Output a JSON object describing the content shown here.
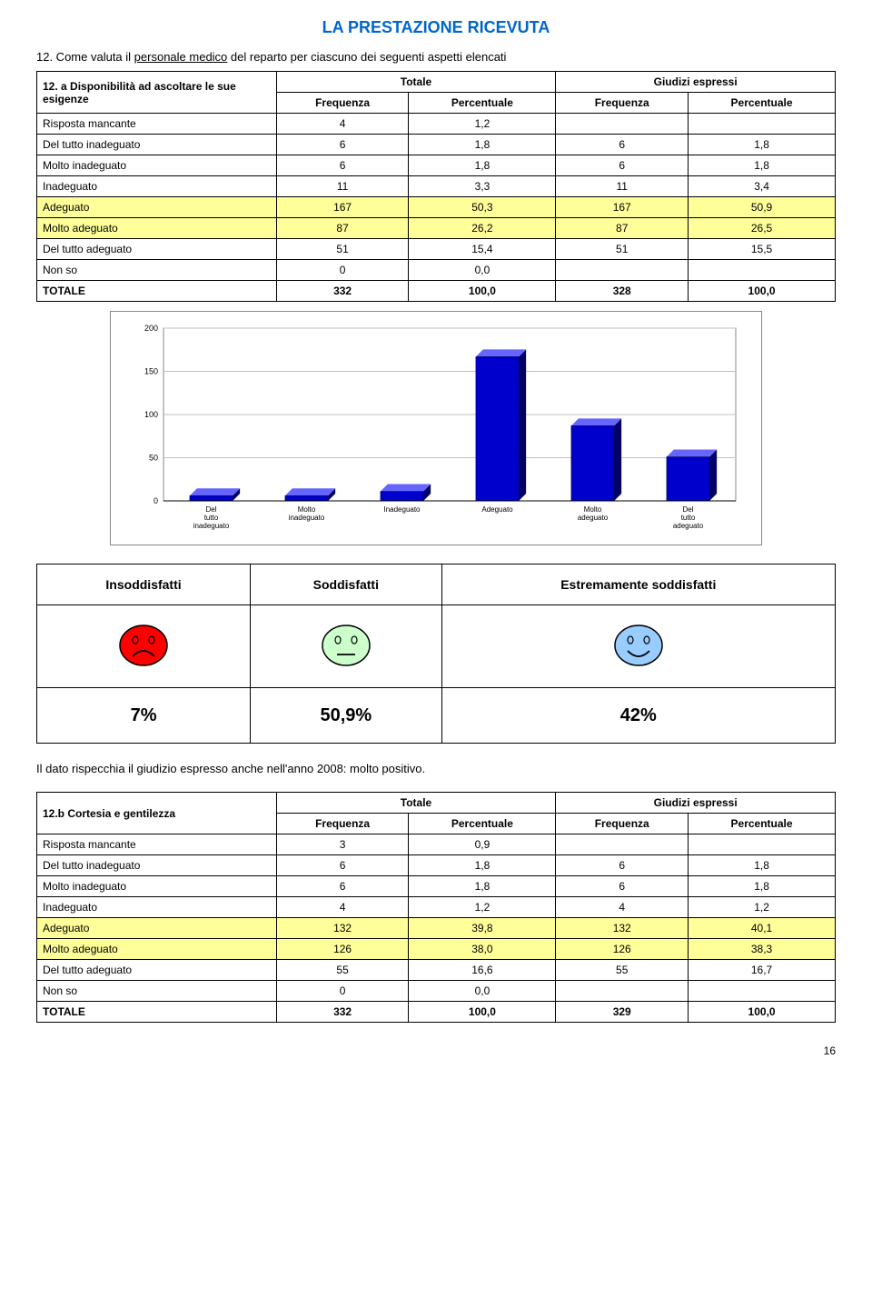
{
  "title": "LA PRESTAZIONE RICEVUTA",
  "q12_text_pre": "12. Come valuta il ",
  "q12_underline": "personale medico",
  "q12_text_post": " del reparto per ciascuno dei seguenti aspetti elencati",
  "table1": {
    "row_label": "12. a Disponibilità ad ascoltare le sue esigenze",
    "header_totale": "Totale",
    "header_giudizi": "Giudizi espressi",
    "header_freq": "Frequenza",
    "header_perc": "Percentuale",
    "rows": [
      {
        "label": "Risposta mancante",
        "f1": "4",
        "p1": "1,2",
        "f2": "",
        "p2": ""
      },
      {
        "label": "Del tutto inadeguato",
        "f1": "6",
        "p1": "1,8",
        "f2": "6",
        "p2": "1,8"
      },
      {
        "label": "Molto inadeguato",
        "f1": "6",
        "p1": "1,8",
        "f2": "6",
        "p2": "1,8"
      },
      {
        "label": "Inadeguato",
        "f1": "11",
        "p1": "3,3",
        "f2": "11",
        "p2": "3,4"
      },
      {
        "label": "Adeguato",
        "f1": "167",
        "p1": "50,3",
        "f2": "167",
        "p2": "50,9",
        "hl": true
      },
      {
        "label": "Molto adeguato",
        "f1": "87",
        "p1": "26,2",
        "f2": "87",
        "p2": "26,5",
        "hl": true
      },
      {
        "label": "Del tutto adeguato",
        "f1": "51",
        "p1": "15,4",
        "f2": "51",
        "p2": "15,5"
      },
      {
        "label": "Non so",
        "f1": "0",
        "p1": "0,0",
        "f2": "",
        "p2": ""
      },
      {
        "label": "TOTALE",
        "f1": "332",
        "p1": "100,0",
        "f2": "328",
        "p2": "100,0",
        "bold": true
      }
    ]
  },
  "chart": {
    "ymax": 200,
    "yticks": [
      0,
      50,
      100,
      150,
      200
    ],
    "categories": [
      "Del tutto inadeguato",
      "Molto inadeguato",
      "Inadeguato",
      "Adeguato",
      "Molto adeguato",
      "Del tutto adeguato"
    ],
    "values": [
      6,
      6,
      11,
      167,
      87,
      51
    ],
    "bar_color": "#0000cc",
    "bar_side": "#000066",
    "bar_top": "#6666ff",
    "grid_color": "#c0c0c0",
    "bg_color": "#ffffff",
    "axis_fontsize": 9
  },
  "satisfaction": {
    "headers": [
      "Insoddisfatti",
      "Soddisfatti",
      "Estremamente soddisfatti"
    ],
    "faces": [
      {
        "color": "#ff0000",
        "mouth": "frown"
      },
      {
        "color": "#ccffcc",
        "mouth": "flat"
      },
      {
        "color": "#99ccff",
        "mouth": "smile"
      }
    ],
    "percents": [
      "7%",
      "50,9%",
      "42%"
    ]
  },
  "caption": "Il dato rispecchia il giudizio espresso anche nell'anno 2008: molto positivo.",
  "table2": {
    "row_label": "12.b Cortesia e gentilezza",
    "header_totale": "Totale",
    "header_giudizi": "Giudizi espressi",
    "header_freq": "Frequenza",
    "header_perc": "Percentuale",
    "rows": [
      {
        "label": "Risposta mancante",
        "f1": "3",
        "p1": "0,9",
        "f2": "",
        "p2": ""
      },
      {
        "label": "Del tutto inadeguato",
        "f1": "6",
        "p1": "1,8",
        "f2": "6",
        "p2": "1,8"
      },
      {
        "label": "Molto inadeguato",
        "f1": "6",
        "p1": "1,8",
        "f2": "6",
        "p2": "1,8"
      },
      {
        "label": "Inadeguato",
        "f1": "4",
        "p1": "1,2",
        "f2": "4",
        "p2": "1,2"
      },
      {
        "label": "Adeguato",
        "f1": "132",
        "p1": "39,8",
        "f2": "132",
        "p2": "40,1",
        "hl": true
      },
      {
        "label": "Molto adeguato",
        "f1": "126",
        "p1": "38,0",
        "f2": "126",
        "p2": "38,3",
        "hl": true
      },
      {
        "label": "Del tutto adeguato",
        "f1": "55",
        "p1": "16,6",
        "f2": "55",
        "p2": "16,7"
      },
      {
        "label": "Non so",
        "f1": "0",
        "p1": "0,0",
        "f2": "",
        "p2": ""
      },
      {
        "label": "TOTALE",
        "f1": "332",
        "p1": "100,0",
        "f2": "329",
        "p2": "100,0",
        "bold": true
      }
    ]
  },
  "pagenum": "16"
}
